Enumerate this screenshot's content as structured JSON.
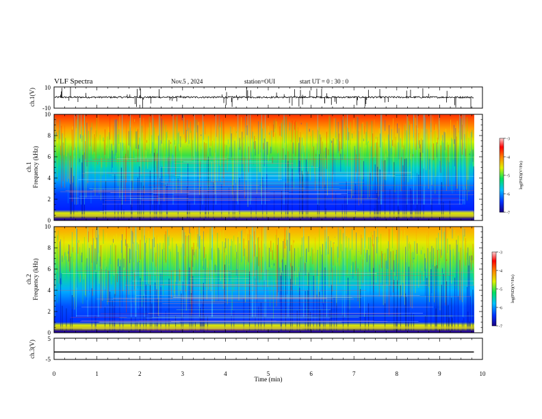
{
  "header": {
    "title": "VLF Spectra",
    "date": "Nov.5 , 2024",
    "station": "station=OUI",
    "start_ut": "start UT = 0 : 30 : 0"
  },
  "chart_data": [
    {
      "type": "line",
      "panel": "ch1-waveform",
      "ylabel": "ch.1(V)",
      "ylim": [
        -10,
        10
      ],
      "yticks": [
        "10",
        "-10"
      ],
      "xlim": [
        0,
        10
      ],
      "baseline": 0,
      "note": "noisy waveform with amplitude around zero and sporadic spikes"
    },
    {
      "type": "heatmap",
      "panel": "ch1-spectrogram",
      "ylabel": "ch.1",
      "ylabel2": "Frequency (kHz)",
      "ylim": [
        0,
        10
      ],
      "yticks": [
        "0",
        "2",
        "4",
        "6",
        "8",
        "10"
      ],
      "xlim": [
        0,
        10
      ],
      "colorbar": {
        "label": "log(PSD)(V²/Hz)",
        "range": [
          -7,
          -3
        ],
        "ticks": [
          "-3",
          "-4",
          "-5",
          "-6",
          "-7"
        ],
        "colors": [
          "#1a0080",
          "#0030ff",
          "#00c0ff",
          "#00e060",
          "#e0f000",
          "#ff8000",
          "#ff0000",
          "#ffd0d0"
        ]
      }
    },
    {
      "type": "heatmap",
      "panel": "ch2-spectrogram",
      "ylabel": "ch.2",
      "ylabel2": "Frequency (kHz)",
      "ylim": [
        0,
        10
      ],
      "yticks": [
        "0",
        "2",
        "4",
        "6",
        "8",
        "10"
      ],
      "xlim": [
        0,
        10
      ],
      "colorbar": {
        "label": "log(PSD)(V²/Hz)",
        "range": [
          -7,
          -3
        ],
        "ticks": [
          "-3",
          "-4",
          "-5",
          "-6",
          "-7"
        ]
      }
    },
    {
      "type": "line",
      "panel": "ch3-waveform",
      "ylabel": "ch.3(V)",
      "ylim": [
        -5,
        5
      ],
      "yticks": [
        "5",
        "-5"
      ],
      "xlim": [
        0,
        10
      ],
      "series": [
        {
          "x": [
            0,
            9.8
          ],
          "y": [
            -1.5,
            -1.5
          ]
        }
      ]
    }
  ],
  "xaxis": {
    "label": "Time (min)",
    "ticks": [
      "0",
      "1",
      "2",
      "3",
      "4",
      "5",
      "6",
      "7",
      "8",
      "9",
      "10"
    ],
    "data_end_min": 9.8
  }
}
